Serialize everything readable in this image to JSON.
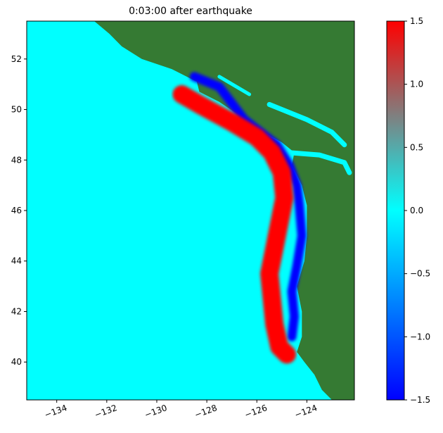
{
  "chart_data": {
    "type": "heatmap",
    "title": "0:03:00 after earthquake",
    "xlabel": "",
    "ylabel": "",
    "xlim": [
      -135.2,
      -122.1
    ],
    "ylim": [
      38.5,
      53.5
    ],
    "x_ticks": [
      -134,
      -132,
      -130,
      -128,
      -126,
      -124
    ],
    "x_tick_labels": [
      "−134",
      "−132",
      "−130",
      "−128",
      "−126",
      "−124"
    ],
    "y_ticks": [
      40,
      42,
      44,
      46,
      48,
      50,
      52
    ],
    "y_tick_labels": [
      "40",
      "42",
      "44",
      "46",
      "48",
      "50",
      "52"
    ],
    "colorbar": {
      "vmin": -1.5,
      "vmax": 1.5,
      "ticks": [
        -1.5,
        -1.0,
        -0.5,
        0.0,
        0.5,
        1.0,
        1.5
      ],
      "tick_labels": [
        "−1.5",
        "−1.0",
        "−0.5",
        "0.0",
        "0.5",
        "1.0",
        "1.5"
      ],
      "colors": [
        "#0000ff",
        "#00ffff",
        "#ff0000"
      ]
    },
    "colors": {
      "ocean_still": "#00ffff",
      "land": "#357a33",
      "trough": "#0000ff",
      "crest": "#ff0000"
    },
    "coastline": [
      [
        -132.5,
        53.5
      ],
      [
        -131.9,
        53.0
      ],
      [
        -131.4,
        52.5
      ],
      [
        -130.6,
        52.0
      ],
      [
        -129.4,
        51.6
      ],
      [
        -128.4,
        51.1
      ],
      [
        -128.3,
        50.7
      ],
      [
        -127.5,
        50.3
      ],
      [
        -126.6,
        49.7
      ],
      [
        -125.9,
        49.2
      ],
      [
        -125.0,
        48.7
      ],
      [
        -124.5,
        48.3
      ],
      [
        -124.6,
        47.8
      ],
      [
        -124.2,
        47.0
      ],
      [
        -124.0,
        46.2
      ],
      [
        -124.0,
        45.0
      ],
      [
        -124.1,
        44.0
      ],
      [
        -124.4,
        43.0
      ],
      [
        -124.2,
        42.0
      ],
      [
        -124.2,
        41.0
      ],
      [
        -124.4,
        40.4
      ],
      [
        -124.1,
        40.0
      ],
      [
        -123.7,
        39.5
      ],
      [
        -123.4,
        38.9
      ],
      [
        -123.0,
        38.5
      ]
    ],
    "leading_trough": [
      [
        -128.5,
        51.3
      ],
      [
        -127.5,
        50.9
      ],
      [
        -126.5,
        49.6
      ],
      [
        -125.2,
        48.6
      ],
      [
        -124.7,
        47.8
      ],
      [
        -124.4,
        47.0
      ],
      [
        -124.3,
        46.2
      ],
      [
        -124.2,
        45.0
      ],
      [
        -124.4,
        43.8
      ],
      [
        -124.6,
        42.8
      ],
      [
        -124.5,
        41.8
      ],
      [
        -124.6,
        41.0
      ]
    ],
    "wave_crest_band": [
      [
        -129.0,
        50.6
      ],
      [
        -128.3,
        50.2
      ],
      [
        -127.0,
        49.5
      ],
      [
        -126.0,
        48.9
      ],
      [
        -125.4,
        48.3
      ],
      [
        -125.0,
        47.5
      ],
      [
        -124.9,
        46.5
      ],
      [
        -125.1,
        45.5
      ],
      [
        -125.3,
        44.5
      ],
      [
        -125.5,
        43.5
      ],
      [
        -125.4,
        42.5
      ],
      [
        -125.3,
        41.5
      ],
      [
        -125.1,
        40.6
      ],
      [
        -124.8,
        40.3
      ]
    ],
    "inner_water": [
      [
        [
          -124.8,
          48.3
        ],
        [
          -123.5,
          48.2
        ],
        [
          -122.5,
          47.9
        ],
        [
          -122.3,
          47.5
        ]
      ],
      [
        [
          -125.5,
          50.2
        ],
        [
          -124.0,
          49.6
        ],
        [
          -123.0,
          49.1
        ],
        [
          -122.5,
          48.6
        ]
      ],
      [
        [
          -127.5,
          51.3
        ],
        [
          -126.3,
          50.6
        ]
      ]
    ]
  }
}
